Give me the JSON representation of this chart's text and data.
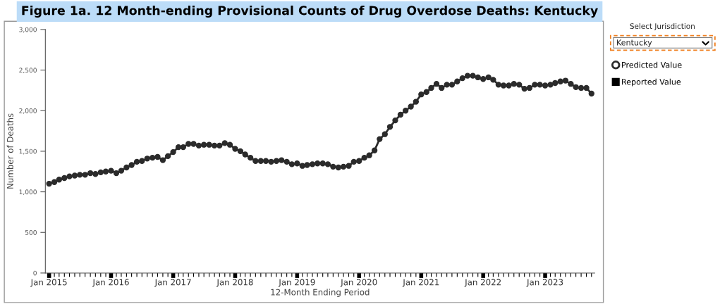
{
  "chart_data": {
    "type": "line",
    "title": "Figure 1a. 12 Month-ending Provisional Counts of Drug Overdose Deaths: Kentucky",
    "xlabel": "12-Month Ending Period",
    "ylabel": "Number of Deaths",
    "x": [
      "2015-01",
      "2015-02",
      "2015-03",
      "2015-04",
      "2015-05",
      "2015-06",
      "2015-07",
      "2015-08",
      "2015-09",
      "2015-10",
      "2015-11",
      "2015-12",
      "2016-01",
      "2016-02",
      "2016-03",
      "2016-04",
      "2016-05",
      "2016-06",
      "2016-07",
      "2016-08",
      "2016-09",
      "2016-10",
      "2016-11",
      "2016-12",
      "2017-01",
      "2017-02",
      "2017-03",
      "2017-04",
      "2017-05",
      "2017-06",
      "2017-07",
      "2017-08",
      "2017-09",
      "2017-10",
      "2017-11",
      "2017-12",
      "2018-01",
      "2018-02",
      "2018-03",
      "2018-04",
      "2018-05",
      "2018-06",
      "2018-07",
      "2018-08",
      "2018-09",
      "2018-10",
      "2018-11",
      "2018-12",
      "2019-01",
      "2019-02",
      "2019-03",
      "2019-04",
      "2019-05",
      "2019-06",
      "2019-07",
      "2019-08",
      "2019-09",
      "2019-10",
      "2019-11",
      "2019-12",
      "2020-01",
      "2020-02",
      "2020-03",
      "2020-04",
      "2020-05",
      "2020-06",
      "2020-07",
      "2020-08",
      "2020-09",
      "2020-10",
      "2020-11",
      "2020-12",
      "2021-01",
      "2021-02",
      "2021-03",
      "2021-04",
      "2021-05",
      "2021-06",
      "2021-07",
      "2021-08",
      "2021-09",
      "2021-10",
      "2021-11",
      "2021-12",
      "2022-01",
      "2022-02",
      "2022-03",
      "2022-04",
      "2022-05",
      "2022-06",
      "2022-07",
      "2022-08",
      "2022-09",
      "2022-10",
      "2022-11",
      "2022-12",
      "2023-01",
      "2023-02",
      "2023-03",
      "2023-04",
      "2023-05",
      "2023-06",
      "2023-07",
      "2023-08",
      "2023-09",
      "2023-10"
    ],
    "series": [
      {
        "name": "Predicted Value",
        "color": "#2b2b2b",
        "marker": "circle",
        "values": [
          1100,
          1120,
          1150,
          1170,
          1190,
          1200,
          1210,
          1210,
          1230,
          1220,
          1240,
          1250,
          1260,
          1230,
          1260,
          1300,
          1330,
          1370,
          1380,
          1410,
          1420,
          1430,
          1390,
          1440,
          1490,
          1550,
          1550,
          1590,
          1590,
          1570,
          1580,
          1580,
          1570,
          1570,
          1600,
          1580,
          1530,
          1500,
          1460,
          1420,
          1380,
          1380,
          1380,
          1370,
          1380,
          1390,
          1370,
          1340,
          1350,
          1320,
          1330,
          1340,
          1350,
          1350,
          1340,
          1310,
          1300,
          1310,
          1320,
          1370,
          1380,
          1420,
          1450,
          1510,
          1650,
          1710,
          1800,
          1880,
          1950,
          2000,
          2050,
          2110,
          2200,
          2230,
          2280,
          2330,
          2280,
          2320,
          2320,
          2360,
          2400,
          2430,
          2430,
          2410,
          2390,
          2410,
          2380,
          2320,
          2310,
          2310,
          2330,
          2320,
          2270,
          2280,
          2320,
          2320,
          2310,
          2320,
          2340,
          2360,
          2370,
          2330,
          2290,
          2280,
          2280,
          2210
        ]
      },
      {
        "name": "Reported Value",
        "color": "#000000",
        "marker": "square",
        "type": "scatter",
        "values": [
          null,
          null,
          null,
          null,
          null,
          null,
          null,
          null,
          null,
          null,
          null,
          null,
          null,
          null,
          null,
          null,
          null,
          null,
          null,
          null,
          null,
          null,
          null,
          null,
          null,
          null,
          null,
          null,
          null,
          null,
          null,
          null,
          null,
          null,
          null,
          null,
          null,
          null,
          null,
          null,
          null,
          null,
          null,
          null,
          null,
          null,
          null,
          null,
          null,
          null,
          null,
          null,
          null,
          null,
          null,
          null,
          null,
          null,
          null,
          null,
          null,
          null,
          null,
          null,
          null,
          null,
          null,
          null,
          null,
          null,
          null,
          null,
          null,
          null,
          null,
          null,
          null,
          null,
          null,
          null,
          null,
          null,
          null,
          null,
          null,
          null,
          null,
          null,
          null,
          null,
          null,
          null,
          null,
          null,
          null,
          null,
          null,
          null,
          null,
          null,
          null,
          null,
          null,
          null,
          null,
          null
        ]
      }
    ],
    "xlim": [
      "2014-12-10",
      "2023-10-20"
    ],
    "xticks": [
      {
        "value": "2015-01",
        "label": "Jan 2015"
      },
      {
        "value": "2016-01",
        "label": "Jan 2016"
      },
      {
        "value": "2017-01",
        "label": "Jan 2017"
      },
      {
        "value": "2018-01",
        "label": "Jan 2018"
      },
      {
        "value": "2019-01",
        "label": "Jan 2019"
      },
      {
        "value": "2020-01",
        "label": "Jan 2020"
      },
      {
        "value": "2021-01",
        "label": "Jan 2021"
      },
      {
        "value": "2022-01",
        "label": "Jan 2022"
      },
      {
        "value": "2023-01",
        "label": "Jan 2023"
      }
    ],
    "ylim": [
      0,
      3000
    ],
    "yticks": [
      0,
      500,
      {
        "value": 1000,
        "label": "1,000"
      },
      {
        "value": 1500,
        "label": "1,500"
      },
      {
        "value": 2000,
        "label": "2,000"
      },
      {
        "value": 2500,
        "label": "2,500"
      },
      {
        "value": 3000,
        "label": "3,000"
      }
    ],
    "grid": false,
    "legend": "right",
    "line_style": "solid",
    "annotations": [
      "Select Jurisdiction",
      "Kentucky"
    ]
  }
}
